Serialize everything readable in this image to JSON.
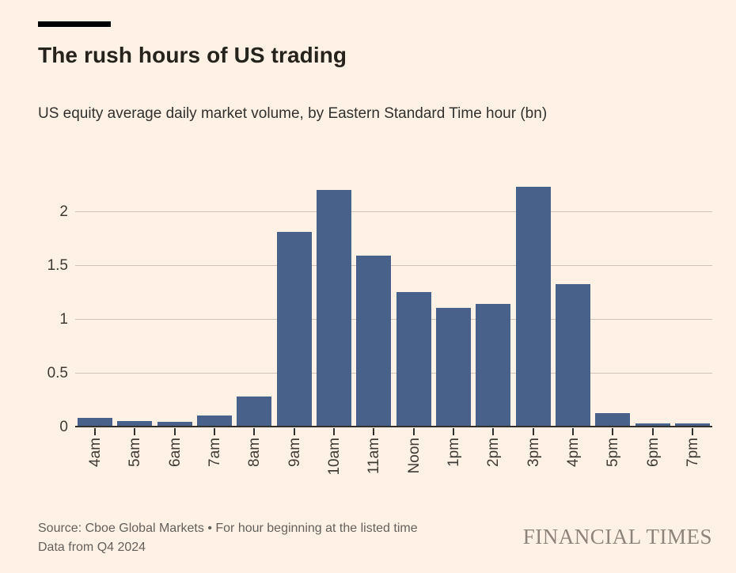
{
  "meta": {
    "background_color": "#FFF1E5",
    "accent_rule_color": "#000000"
  },
  "header": {
    "title": "The rush hours of US trading",
    "subtitle": "US equity average daily market volume, by Eastern Standard Time hour (bn)"
  },
  "chart_data": {
    "type": "bar",
    "categories": [
      "4am",
      "5am",
      "6am",
      "7am",
      "8am",
      "9am",
      "10am",
      "11am",
      "Noon",
      "1pm",
      "2pm",
      "3pm",
      "4pm",
      "5pm",
      "6pm",
      "7pm"
    ],
    "values": [
      0.09,
      0.06,
      0.05,
      0.11,
      0.29,
      1.82,
      2.21,
      1.6,
      1.26,
      1.11,
      1.15,
      2.24,
      1.33,
      0.13,
      0.04,
      0.04
    ],
    "title": "The rush hours of US trading",
    "xlabel": "",
    "ylabel": "",
    "ylim": [
      0,
      2.4
    ],
    "yticks": [
      0,
      0.5,
      1,
      1.5,
      2
    ],
    "bar_color": "#47618A",
    "gridline_color": "#CDC4B9",
    "grid": true,
    "legend": false
  },
  "footer": {
    "source_line1": "Source: Cboe Global Markets • For hour beginning at the listed time",
    "source_line2": "Data from Q4 2024",
    "brand": "FINANCIAL TIMES"
  }
}
